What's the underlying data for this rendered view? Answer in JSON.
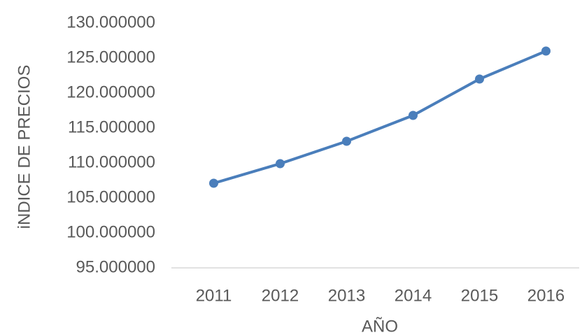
{
  "chart_data": {
    "type": "line",
    "x_label": "AÑO",
    "y_label": "iNDICE DE PRECIOS",
    "categories": [
      "2011",
      "2012",
      "2013",
      "2014",
      "2015",
      "2016"
    ],
    "series": [
      {
        "name": "Índice",
        "color": "#4a7ebb",
        "values": [
          107.1,
          109.9,
          113.1,
          116.8,
          122.0,
          126.0
        ]
      }
    ],
    "ylim": [
      95,
      130
    ],
    "yticks": [
      {
        "value": 95,
        "label": "95.000000"
      },
      {
        "value": 100,
        "label": "100.000000"
      },
      {
        "value": 105,
        "label": "105.000000"
      },
      {
        "value": 110,
        "label": "110.000000"
      },
      {
        "value": 115,
        "label": "115.000000"
      },
      {
        "value": 120,
        "label": "120.000000"
      },
      {
        "value": 125,
        "label": "125.000000"
      },
      {
        "value": 130,
        "label": "130.000000"
      }
    ],
    "grid": false
  }
}
